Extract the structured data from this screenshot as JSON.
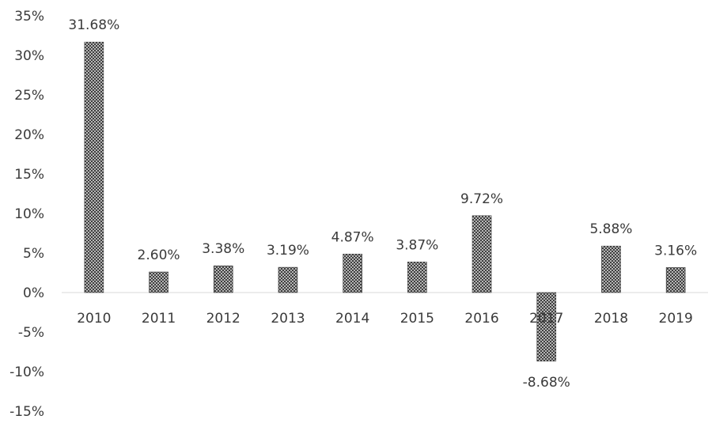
{
  "chart_data": {
    "type": "bar",
    "categories": [
      "2010",
      "2011",
      "2012",
      "2013",
      "2014",
      "2015",
      "2016",
      "2017",
      "2018",
      "2019"
    ],
    "values": [
      31.68,
      2.6,
      3.38,
      3.19,
      4.87,
      3.87,
      9.72,
      -8.68,
      5.88,
      3.16
    ],
    "data_labels": [
      "31.68%",
      "2.60%",
      "3.38%",
      "3.19%",
      "4.87%",
      "3.87%",
      "9.72%",
      "-8.68%",
      "5.88%",
      "3.16%"
    ],
    "y_ticks": [
      35,
      30,
      25,
      20,
      15,
      10,
      5,
      0,
      -5,
      -10,
      -15
    ],
    "y_tick_labels": [
      "35%",
      "30%",
      "25%",
      "20%",
      "15%",
      "10%",
      "5%",
      "0%",
      "-5%",
      "-10%",
      "-15%"
    ],
    "ylim": [
      -15,
      35
    ],
    "title": "",
    "xlabel": "",
    "ylabel": "",
    "grid": false,
    "legend": "none",
    "bar_fill": "crosshatch",
    "colors": {
      "bar_ink": "#3a3a3a",
      "axis": "#d9d9d9",
      "text": "#3a3a3a"
    }
  }
}
